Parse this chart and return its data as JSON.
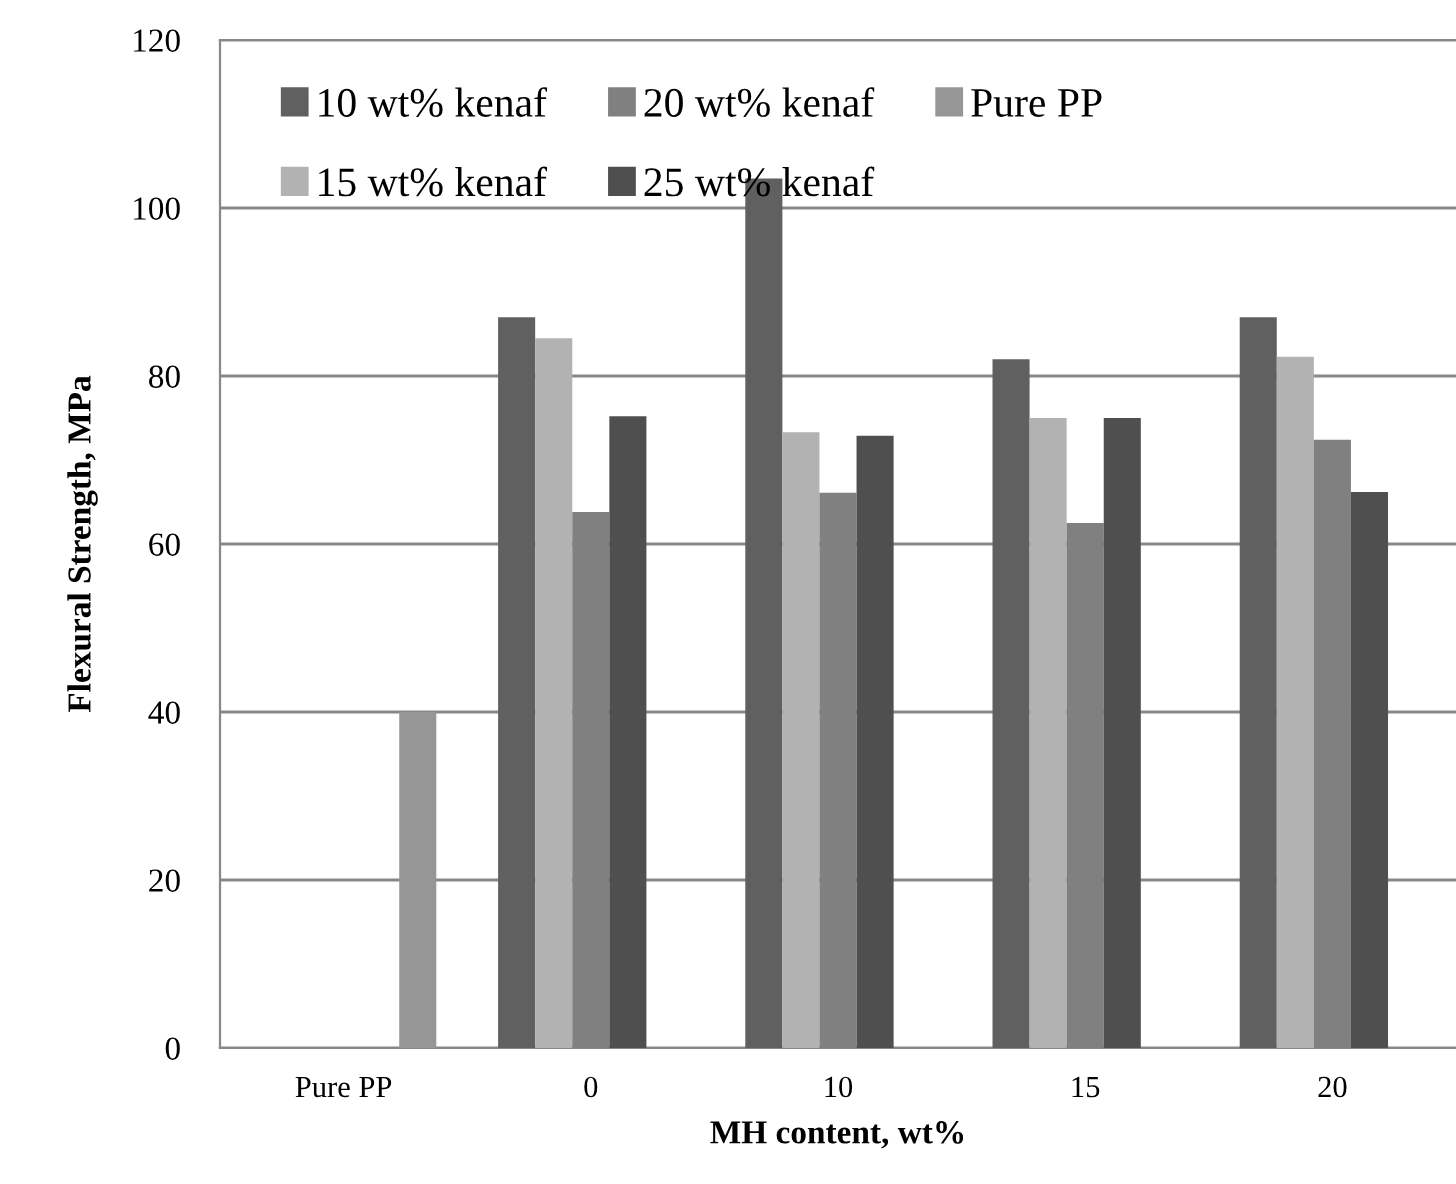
{
  "chart_data": {
    "type": "bar",
    "xlabel": "MH content, wt%",
    "ylabel": "Flexural Strength, MPa",
    "categories": [
      "Pure PP",
      "0",
      "10",
      "15",
      "20"
    ],
    "series": [
      {
        "name": "10 wt% kenaf",
        "color": "#606060",
        "values": [
          null,
          87,
          103.5,
          82,
          87
        ]
      },
      {
        "name": "15 wt% kenaf",
        "color": "#b2b2b2",
        "values": [
          null,
          84.5,
          73.3,
          75,
          82.3
        ]
      },
      {
        "name": "20 wt% kenaf",
        "color": "#808080",
        "values": [
          null,
          63.8,
          66.1,
          62.5,
          72.4
        ]
      },
      {
        "name": "25 wt% kenaf",
        "color": "#4f4f4f",
        "values": [
          null,
          75.2,
          72.9,
          75,
          66.2
        ]
      },
      {
        "name": "Pure PP",
        "color": "#969696",
        "values": [
          40,
          null,
          null,
          null,
          null
        ]
      }
    ],
    "ylim": [
      0,
      120
    ],
    "yticks": [
      0,
      20,
      40,
      60,
      80,
      100,
      120
    ],
    "grid": "y",
    "legend": "top left"
  }
}
